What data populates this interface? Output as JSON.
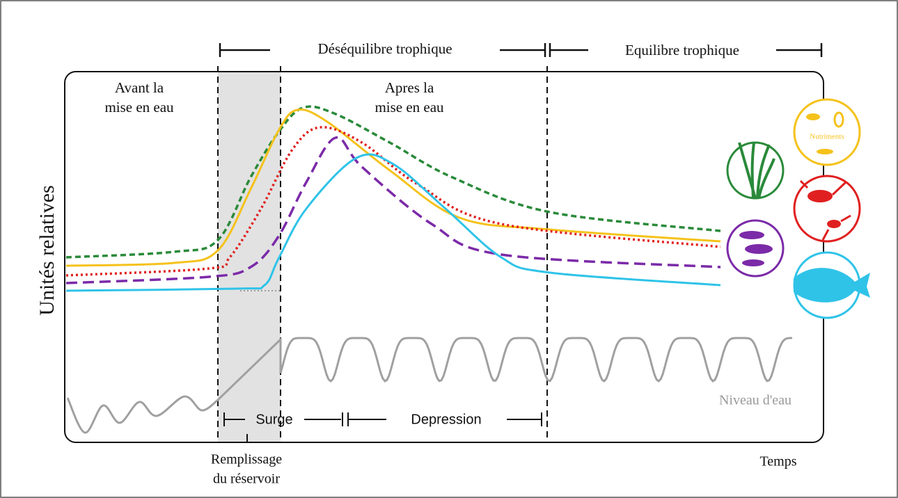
{
  "header": {
    "imbalance": "Déséquilibre trophique",
    "balance": "Equilibre trophique"
  },
  "phases": {
    "before": [
      "Avant la",
      "mise en eau"
    ],
    "after": [
      "Apres la",
      "mise en eau"
    ],
    "surge": "Surge",
    "depression": "Depression"
  },
  "axes": {
    "y_label": "Unités relatives",
    "x_label": "Temps"
  },
  "annotations": {
    "water_level": "Niveau d'eau",
    "filling": [
      "Remplissage",
      "du réservoir"
    ],
    "nutrients": "Nutriments"
  }
}
